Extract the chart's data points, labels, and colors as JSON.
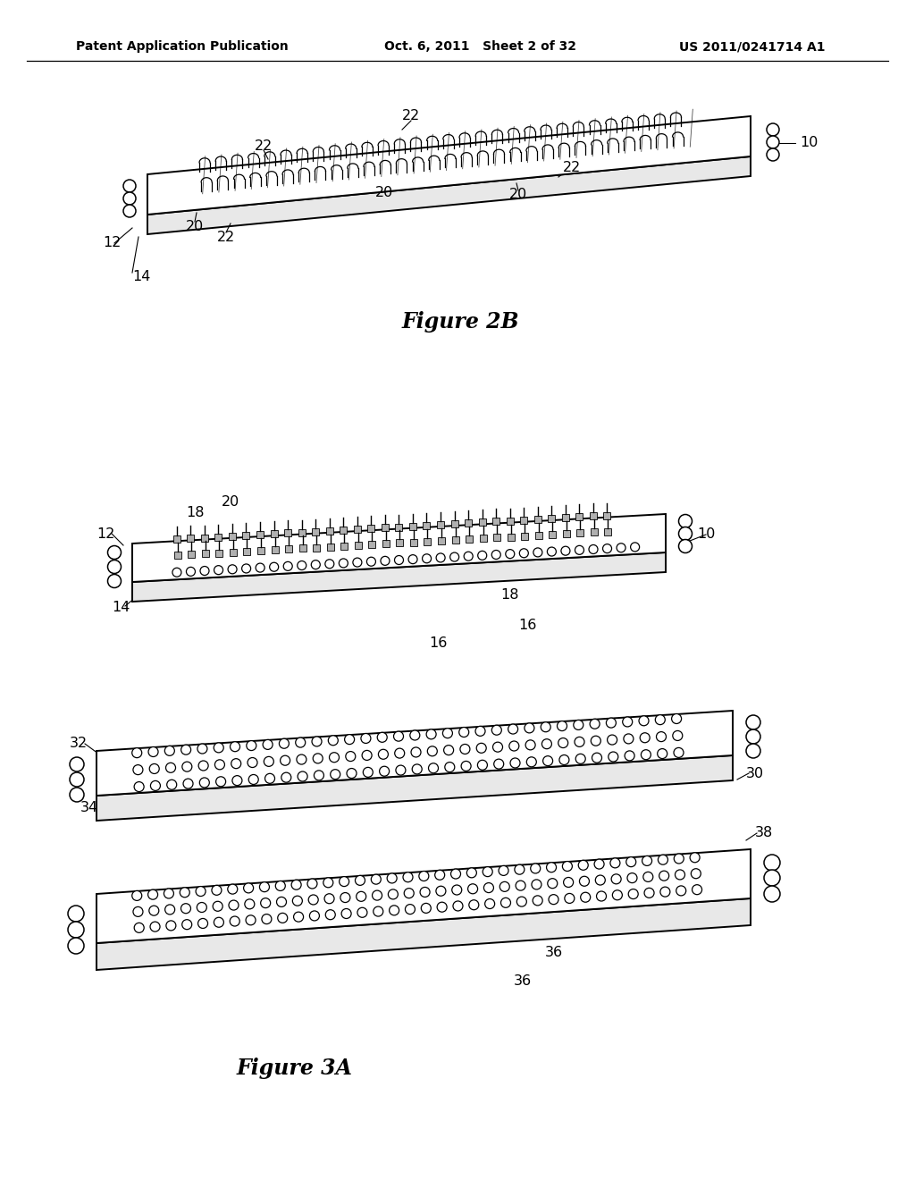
{
  "bg_color": "#ffffff",
  "header_left": "Patent Application Publication",
  "header_center": "Oct. 6, 2011   Sheet 2 of 32",
  "header_right": "US 2011/0241714 A1",
  "fig2b_label": "Figure 2B",
  "fig3a_label": "Figure 3A",
  "line_color": "#000000",
  "face_color": "#ffffff",
  "shade_color": "#e8e8e8",
  "shade_dark": "#d0d0d0",
  "pin_color": "#b0b0b0"
}
